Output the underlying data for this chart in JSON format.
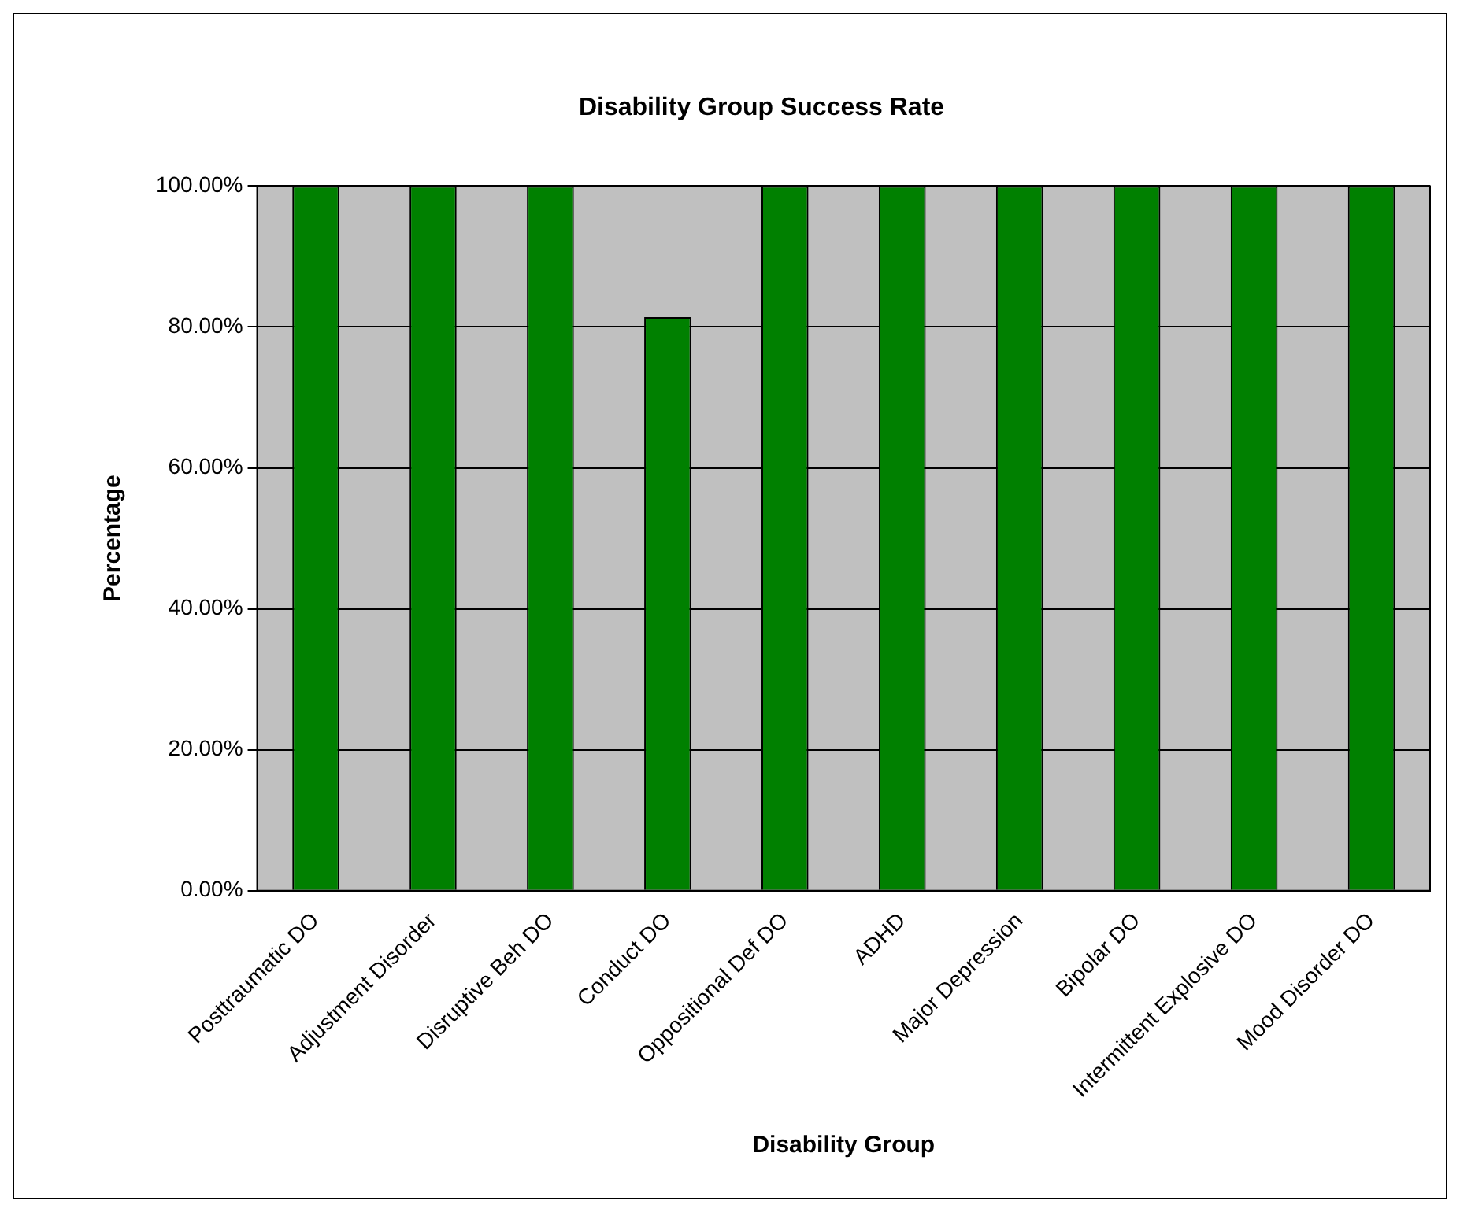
{
  "chart_data": {
    "type": "bar",
    "title": "Disability Group Success Rate",
    "xlabel": "Disability Group",
    "ylabel": "Percentage",
    "categories": [
      "Posttraumatic DO",
      "Adjustment Disorder",
      "Disruptive Beh DO",
      "Conduct DO",
      "Oppositional Def DO",
      "ADHD",
      "Major Depression",
      "Bipolar DO",
      "Intermittent Explosive DO",
      "Mood Disorder DO"
    ],
    "values": [
      100,
      100,
      100,
      81.4,
      100,
      100,
      100,
      100,
      100,
      100
    ],
    "color": "#008000",
    "ylim": [
      0,
      100
    ],
    "yticks": [
      {
        "value": 0,
        "label": "0.00%"
      },
      {
        "value": 20,
        "label": "20.00%"
      },
      {
        "value": 40,
        "label": "40.00%"
      },
      {
        "value": 60,
        "label": "60.00%"
      },
      {
        "value": 80,
        "label": "80.00%"
      },
      {
        "value": 100,
        "label": "100.00%"
      }
    ],
    "grid": "y",
    "legend": false
  }
}
